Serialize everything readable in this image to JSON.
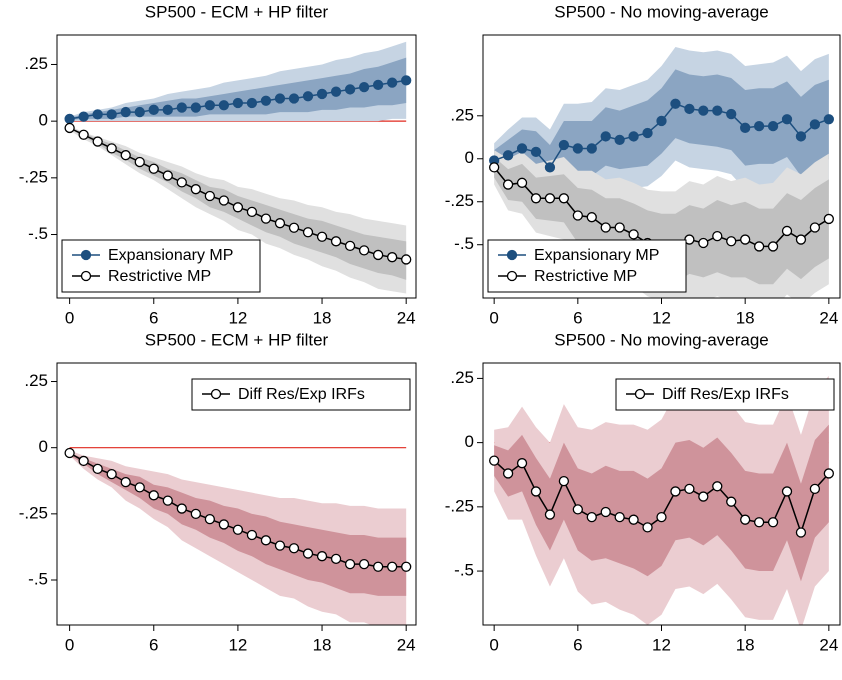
{
  "chart_data": [
    {
      "type": "line",
      "title": "SP500 - ECM + HP filter",
      "legend": "lower left",
      "x": [
        0,
        1,
        2,
        3,
        4,
        5,
        6,
        7,
        8,
        9,
        10,
        11,
        12,
        13,
        14,
        15,
        16,
        17,
        18,
        19,
        20,
        21,
        22,
        23,
        24
      ],
      "xlim": [
        -0.9,
        24.7
      ],
      "xticks": [
        0,
        6,
        12,
        18,
        24
      ],
      "ylim": [
        -0.78,
        0.38
      ],
      "yticks": [
        {
          "value": 0.25,
          "label": ".25"
        },
        0,
        {
          "value": -0.25,
          "label": "-.25"
        },
        {
          "value": -0.5,
          "label": "-.5"
        }
      ],
      "refline": 0,
      "refline_color": "#e0281e",
      "series": [
        {
          "name": "Expansionary MP",
          "color": "#1d4f7f",
          "marker": "filled",
          "band_colors": [
            "#c6d4e3",
            "#8ba5c2"
          ],
          "values": [
            0.01,
            0.02,
            0.03,
            0.03,
            0.04,
            0.04,
            0.05,
            0.05,
            0.06,
            0.06,
            0.07,
            0.07,
            0.08,
            0.08,
            0.09,
            0.1,
            0.1,
            0.11,
            0.12,
            0.13,
            0.14,
            0.15,
            0.16,
            0.17,
            0.18
          ],
          "outer_upper": [
            0.02,
            0.04,
            0.05,
            0.06,
            0.08,
            0.09,
            0.1,
            0.12,
            0.13,
            0.14,
            0.15,
            0.17,
            0.18,
            0.19,
            0.2,
            0.22,
            0.23,
            0.24,
            0.25,
            0.27,
            0.28,
            0.3,
            0.31,
            0.33,
            0.35
          ],
          "outer_lower": [
            0,
            0,
            0,
            0,
            0,
            0,
            0,
            0,
            0,
            0,
            0,
            0,
            0,
            0,
            0,
            0,
            0,
            0,
            0,
            0,
            0,
            0,
            0,
            0.01,
            0.01
          ],
          "inner_upper": [
            0.015,
            0.03,
            0.04,
            0.05,
            0.06,
            0.07,
            0.08,
            0.09,
            0.1,
            0.1,
            0.11,
            0.12,
            0.13,
            0.14,
            0.15,
            0.16,
            0.17,
            0.18,
            0.19,
            0.2,
            0.21,
            0.23,
            0.24,
            0.26,
            0.28
          ],
          "inner_lower": [
            0.005,
            0.01,
            0.01,
            0.01,
            0.02,
            0.02,
            0.02,
            0.02,
            0.02,
            0.02,
            0.03,
            0.03,
            0.03,
            0.03,
            0.03,
            0.04,
            0.04,
            0.04,
            0.05,
            0.05,
            0.06,
            0.06,
            0.07,
            0.07,
            0.08
          ]
        },
        {
          "name": "Restrictive MP",
          "color": "#000000",
          "marker": "open",
          "band_colors": [
            "#e0e0e0",
            "#c0c0c0"
          ],
          "values": [
            -0.03,
            -0.06,
            -0.09,
            -0.12,
            -0.15,
            -0.18,
            -0.21,
            -0.24,
            -0.27,
            -0.3,
            -0.33,
            -0.35,
            -0.38,
            -0.4,
            -0.43,
            -0.45,
            -0.47,
            -0.49,
            -0.51,
            -0.53,
            -0.55,
            -0.57,
            -0.59,
            -0.6,
            -0.61
          ],
          "outer_upper": [
            -0.02,
            -0.05,
            -0.07,
            -0.09,
            -0.11,
            -0.14,
            -0.16,
            -0.18,
            -0.2,
            -0.23,
            -0.25,
            -0.26,
            -0.29,
            -0.3,
            -0.32,
            -0.34,
            -0.35,
            -0.37,
            -0.38,
            -0.4,
            -0.41,
            -0.43,
            -0.44,
            -0.45,
            -0.46
          ],
          "outer_lower": [
            -0.04,
            -0.08,
            -0.11,
            -0.15,
            -0.19,
            -0.23,
            -0.26,
            -0.3,
            -0.34,
            -0.38,
            -0.41,
            -0.44,
            -0.48,
            -0.5,
            -0.54,
            -0.56,
            -0.59,
            -0.61,
            -0.64,
            -0.66,
            -0.69,
            -0.71,
            -0.74,
            -0.75,
            -0.76
          ],
          "inner_upper": [
            -0.03,
            -0.05,
            -0.08,
            -0.1,
            -0.13,
            -0.16,
            -0.18,
            -0.21,
            -0.23,
            -0.26,
            -0.29,
            -0.3,
            -0.33,
            -0.35,
            -0.37,
            -0.39,
            -0.41,
            -0.43,
            -0.44,
            -0.46,
            -0.48,
            -0.5,
            -0.51,
            -0.52,
            -0.53
          ],
          "inner_lower": [
            -0.03,
            -0.07,
            -0.1,
            -0.14,
            -0.17,
            -0.21,
            -0.24,
            -0.27,
            -0.31,
            -0.34,
            -0.38,
            -0.4,
            -0.43,
            -0.46,
            -0.49,
            -0.51,
            -0.54,
            -0.56,
            -0.58,
            -0.6,
            -0.63,
            -0.65,
            -0.67,
            -0.68,
            -0.7
          ]
        }
      ]
    },
    {
      "type": "line",
      "title": "SP500 - No moving-average",
      "legend": "lower left",
      "x": [
        0,
        1,
        2,
        3,
        4,
        5,
        6,
        7,
        8,
        9,
        10,
        11,
        12,
        13,
        14,
        15,
        16,
        17,
        18,
        19,
        20,
        21,
        22,
        23,
        24
      ],
      "xlim": [
        -0.8,
        24.8
      ],
      "xticks": [
        0,
        6,
        12,
        18,
        24
      ],
      "ylim": [
        -0.81,
        0.72
      ],
      "yticks": [
        {
          "value": 0.25,
          "label": ".25"
        },
        0,
        {
          "value": -0.25,
          "label": "-.25"
        },
        {
          "value": -0.5,
          "label": "-.5"
        }
      ],
      "refline": 0,
      "refline_color": "#e0281e",
      "series": [
        {
          "name": "Expansionary MP",
          "color": "#1d4f7f",
          "marker": "filled",
          "band_colors": [
            "#c6d4e3",
            "#8ba5c2"
          ],
          "values": [
            -0.01,
            0.02,
            0.06,
            0.04,
            -0.05,
            0.08,
            0.06,
            0.06,
            0.13,
            0.11,
            0.13,
            0.15,
            0.22,
            0.32,
            0.29,
            0.28,
            0.28,
            0.26,
            0.18,
            0.19,
            0.19,
            0.23,
            0.13,
            0.2,
            0.23
          ],
          "outer_upper": [
            0.09,
            0.17,
            0.24,
            0.24,
            0.17,
            0.32,
            0.32,
            0.33,
            0.41,
            0.4,
            0.43,
            0.46,
            0.54,
            0.65,
            0.63,
            0.62,
            0.63,
            0.61,
            0.54,
            0.55,
            0.56,
            0.6,
            0.51,
            0.58,
            0.61
          ],
          "outer_lower": [
            -0.11,
            -0.13,
            -0.12,
            -0.16,
            -0.27,
            -0.16,
            -0.2,
            -0.21,
            -0.15,
            -0.18,
            -0.17,
            -0.16,
            -0.1,
            -0.01,
            -0.05,
            -0.06,
            -0.07,
            -0.09,
            -0.18,
            -0.17,
            -0.18,
            -0.14,
            -0.25,
            -0.18,
            -0.15
          ],
          "inner_upper": [
            0.05,
            0.11,
            0.17,
            0.16,
            0.08,
            0.22,
            0.22,
            0.22,
            0.3,
            0.28,
            0.31,
            0.34,
            0.41,
            0.52,
            0.49,
            0.48,
            0.49,
            0.47,
            0.4,
            0.41,
            0.41,
            0.45,
            0.36,
            0.43,
            0.46
          ],
          "inner_lower": [
            -0.07,
            -0.07,
            -0.05,
            -0.08,
            -0.18,
            -0.06,
            -0.1,
            -0.1,
            -0.04,
            -0.06,
            -0.05,
            -0.04,
            0.03,
            0.12,
            0.09,
            0.08,
            0.07,
            0.05,
            -0.04,
            -0.03,
            -0.03,
            0.01,
            -0.1,
            -0.03,
            0
          ]
        },
        {
          "name": "Restrictive MP",
          "color": "#000000",
          "marker": "open",
          "band_colors": [
            "#e0e0e0",
            "#c0c0c0"
          ],
          "values": [
            -0.05,
            -0.15,
            -0.14,
            -0.23,
            -0.23,
            -0.23,
            -0.33,
            -0.34,
            -0.4,
            -0.4,
            -0.44,
            -0.49,
            -0.51,
            -0.52,
            -0.47,
            -0.49,
            -0.45,
            -0.48,
            -0.47,
            -0.51,
            -0.51,
            -0.42,
            -0.47,
            -0.4,
            -0.35
          ],
          "outer_upper": [
            0.05,
            0,
            0.04,
            -0.03,
            -0.01,
            0.01,
            -0.07,
            -0.07,
            -0.12,
            -0.11,
            -0.14,
            -0.18,
            -0.19,
            -0.19,
            -0.13,
            -0.15,
            -0.1,
            -0.13,
            -0.11,
            -0.15,
            -0.14,
            -0.05,
            -0.09,
            -0.02,
            0.03
          ],
          "outer_lower": [
            -0.15,
            -0.3,
            -0.32,
            -0.43,
            -0.45,
            -0.47,
            -0.59,
            -0.61,
            -0.68,
            -0.69,
            -0.74,
            -0.8,
            -0.83,
            -0.85,
            -0.81,
            -0.83,
            -0.8,
            -0.83,
            -0.83,
            -0.87,
            -0.88,
            -0.79,
            -0.85,
            -0.78,
            -0.73
          ],
          "inner_upper": [
            0.01,
            -0.06,
            -0.03,
            -0.11,
            -0.1,
            -0.09,
            -0.17,
            -0.18,
            -0.23,
            -0.23,
            -0.26,
            -0.3,
            -0.32,
            -0.32,
            -0.27,
            -0.29,
            -0.24,
            -0.27,
            -0.25,
            -0.29,
            -0.29,
            -0.2,
            -0.24,
            -0.17,
            -0.12
          ],
          "inner_lower": [
            -0.11,
            -0.24,
            -0.25,
            -0.35,
            -0.36,
            -0.37,
            -0.49,
            -0.5,
            -0.57,
            -0.57,
            -0.62,
            -0.68,
            -0.7,
            -0.72,
            -0.67,
            -0.69,
            -0.66,
            -0.69,
            -0.69,
            -0.73,
            -0.73,
            -0.64,
            -0.7,
            -0.63,
            -0.58
          ]
        }
      ]
    },
    {
      "type": "line",
      "title": "SP500 - ECM + HP filter",
      "legend": "upper right",
      "x": [
        0,
        1,
        2,
        3,
        4,
        5,
        6,
        7,
        8,
        9,
        10,
        11,
        12,
        13,
        14,
        15,
        16,
        17,
        18,
        19,
        20,
        21,
        22,
        23,
        24
      ],
      "xlim": [
        -0.9,
        24.7
      ],
      "xticks": [
        0,
        6,
        12,
        18,
        24
      ],
      "ylim": [
        -0.67,
        0.32
      ],
      "yticks": [
        {
          "value": 0.25,
          "label": ".25"
        },
        0,
        {
          "value": -0.25,
          "label": "-.25"
        },
        {
          "value": -0.5,
          "label": "-.5"
        }
      ],
      "refline": 0,
      "refline_color": "#e0281e",
      "series": [
        {
          "name": "Diff Res/Exp IRFs",
          "color": "#000000",
          "marker": "open",
          "band_colors": [
            "#ebcdd1",
            "#cf939b"
          ],
          "values": [
            -0.02,
            -0.05,
            -0.08,
            -0.1,
            -0.13,
            -0.15,
            -0.18,
            -0.2,
            -0.23,
            -0.25,
            -0.27,
            -0.29,
            -0.31,
            -0.33,
            -0.35,
            -0.37,
            -0.38,
            -0.4,
            -0.41,
            -0.42,
            -0.44,
            -0.44,
            -0.45,
            -0.45,
            -0.45
          ],
          "outer_upper": [
            -0.01,
            -0.03,
            -0.04,
            -0.05,
            -0.07,
            -0.08,
            -0.09,
            -0.1,
            -0.12,
            -0.13,
            -0.14,
            -0.15,
            -0.16,
            -0.17,
            -0.18,
            -0.19,
            -0.19,
            -0.2,
            -0.21,
            -0.21,
            -0.22,
            -0.22,
            -0.23,
            -0.23,
            -0.23
          ],
          "outer_lower": [
            -0.03,
            -0.08,
            -0.12,
            -0.15,
            -0.2,
            -0.23,
            -0.27,
            -0.3,
            -0.35,
            -0.38,
            -0.41,
            -0.44,
            -0.47,
            -0.5,
            -0.53,
            -0.56,
            -0.57,
            -0.6,
            -0.62,
            -0.63,
            -0.66,
            -0.66,
            -0.68,
            -0.68,
            -0.68
          ],
          "inner_upper": [
            -0.02,
            -0.04,
            -0.06,
            -0.08,
            -0.1,
            -0.11,
            -0.14,
            -0.15,
            -0.17,
            -0.19,
            -0.2,
            -0.22,
            -0.23,
            -0.25,
            -0.26,
            -0.28,
            -0.29,
            -0.3,
            -0.31,
            -0.32,
            -0.33,
            -0.33,
            -0.34,
            -0.34,
            -0.34
          ],
          "inner_lower": [
            -0.03,
            -0.06,
            -0.1,
            -0.13,
            -0.16,
            -0.19,
            -0.23,
            -0.25,
            -0.29,
            -0.31,
            -0.34,
            -0.36,
            -0.39,
            -0.41,
            -0.44,
            -0.46,
            -0.48,
            -0.5,
            -0.51,
            -0.53,
            -0.55,
            -0.55,
            -0.56,
            -0.56,
            -0.56
          ]
        }
      ]
    },
    {
      "type": "line",
      "title": "SP500 - No moving-average",
      "legend": "upper right",
      "x": [
        0,
        1,
        2,
        3,
        4,
        5,
        6,
        7,
        8,
        9,
        10,
        11,
        12,
        13,
        14,
        15,
        16,
        17,
        18,
        19,
        20,
        21,
        22,
        23,
        24
      ],
      "xlim": [
        -0.8,
        24.8
      ],
      "xticks": [
        0,
        6,
        12,
        18,
        24
      ],
      "ylim": [
        -0.71,
        0.31
      ],
      "yticks": [
        {
          "value": 0.25,
          "label": ".25"
        },
        0,
        {
          "value": -0.25,
          "label": "-.25"
        },
        {
          "value": -0.5,
          "label": "-.5"
        }
      ],
      "refline": 0,
      "refline_color": "#e0281e",
      "series": [
        {
          "name": "Diff Res/Exp IRFs",
          "color": "#000000",
          "marker": "open",
          "band_colors": [
            "#ebcdd1",
            "#cf939b"
          ],
          "values": [
            -0.07,
            -0.12,
            -0.08,
            -0.19,
            -0.28,
            -0.15,
            -0.26,
            -0.29,
            -0.27,
            -0.29,
            -0.3,
            -0.33,
            -0.29,
            -0.19,
            -0.18,
            -0.21,
            -0.17,
            -0.23,
            -0.3,
            -0.31,
            -0.31,
            -0.19,
            -0.35,
            -0.18,
            -0.12
          ],
          "outer_upper": [
            0.05,
            0.06,
            0.14,
            0.06,
            0,
            0.15,
            0.06,
            0.05,
            0.08,
            0.07,
            0.07,
            0.05,
            0.09,
            0.19,
            0.2,
            0.17,
            0.21,
            0.15,
            0.08,
            0.07,
            0.07,
            0.19,
            0.03,
            0.2,
            0.26
          ],
          "outer_lower": [
            -0.19,
            -0.3,
            -0.3,
            -0.44,
            -0.56,
            -0.45,
            -0.58,
            -0.63,
            -0.62,
            -0.65,
            -0.67,
            -0.71,
            -0.67,
            -0.57,
            -0.56,
            -0.59,
            -0.55,
            -0.61,
            -0.68,
            -0.69,
            -0.69,
            -0.57,
            -0.73,
            -0.56,
            -0.5
          ],
          "inner_upper": [
            -0.01,
            -0.03,
            0.03,
            -0.06,
            -0.14,
            0,
            -0.1,
            -0.12,
            -0.09,
            -0.11,
            -0.11,
            -0.14,
            -0.1,
            0,
            0.01,
            -0.02,
            0.02,
            -0.04,
            -0.11,
            -0.12,
            -0.12,
            0,
            -0.16,
            0.01,
            0.07
          ],
          "inner_lower": [
            -0.13,
            -0.21,
            -0.19,
            -0.32,
            -0.42,
            -0.3,
            -0.42,
            -0.46,
            -0.45,
            -0.47,
            -0.49,
            -0.52,
            -0.48,
            -0.38,
            -0.37,
            -0.4,
            -0.36,
            -0.42,
            -0.49,
            -0.5,
            -0.5,
            -0.38,
            -0.54,
            -0.37,
            -0.31
          ]
        }
      ]
    }
  ]
}
